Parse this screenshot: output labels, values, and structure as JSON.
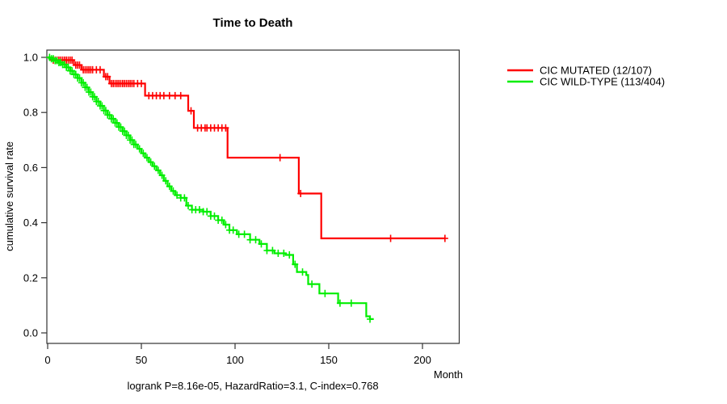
{
  "title": "Time to Death",
  "axes": {
    "ylabel": "cumulative survival rate",
    "xlabel": "Month",
    "xticks": [
      0,
      50,
      100,
      150,
      200
    ],
    "xtick_labels": [
      "0",
      "50",
      "100",
      "150",
      "200"
    ],
    "yticks": [
      0.0,
      0.2,
      0.4,
      0.6,
      0.8,
      1.0
    ],
    "ytick_labels": [
      "0.0",
      "0.2",
      "0.4",
      "0.6",
      "0.8",
      "1.0"
    ]
  },
  "legend": {
    "entries": [
      {
        "key": "cic-mutated",
        "label": "CIC MUTATED (12/107)",
        "color": "#FF0000"
      },
      {
        "key": "cic-wild-type",
        "label": "CIC WILD-TYPE (113/404)",
        "color": "#00EE00"
      }
    ]
  },
  "footer": {
    "stats_line": "logrank P=8.16e-05, HazardRatio=3.1, C-index=0.768"
  },
  "colors": {
    "mutated": "#FF0000",
    "wildtype": "#00EE00",
    "axis": "#333333",
    "text": "#000000",
    "background": "#FFFFFF"
  },
  "chart_data": {
    "type": "line",
    "subtype": "kaplan-meier-step",
    "title": "Time to Death",
    "xlabel": "Month",
    "ylabel": "cumulative survival rate",
    "xlim": [
      0,
      219
    ],
    "ylim": [
      0,
      1.0
    ],
    "xticks": [
      0,
      50,
      100,
      150,
      200
    ],
    "yticks": [
      0.0,
      0.2,
      0.4,
      0.6,
      0.8,
      1.0
    ],
    "grid": false,
    "legend_position": "right-outside",
    "series": [
      {
        "name": "CIC MUTATED (12/107)",
        "key": "cic-mutated",
        "color": "#FF0000",
        "events_total": "12/107",
        "end_month": 212,
        "steps": [
          [
            0,
            1.0
          ],
          [
            1,
            0.995
          ],
          [
            3,
            0.99
          ],
          [
            14,
            0.972
          ],
          [
            18,
            0.955
          ],
          [
            30,
            0.93
          ],
          [
            33,
            0.905
          ],
          [
            52,
            0.861
          ],
          [
            75,
            0.806
          ],
          [
            78,
            0.744
          ],
          [
            96,
            0.636
          ],
          [
            134,
            0.506
          ],
          [
            146,
            0.343
          ]
        ],
        "censor_months": [
          3,
          4,
          5,
          6,
          7,
          8,
          9,
          10,
          11,
          12,
          13,
          15,
          16,
          17,
          19,
          20,
          21,
          22,
          23,
          24,
          26,
          28,
          31,
          32,
          34,
          35,
          36,
          37,
          38,
          39,
          40,
          41,
          42,
          43,
          44,
          45,
          46,
          48,
          50,
          54,
          56,
          58,
          60,
          62,
          65,
          68,
          71,
          76.5,
          80,
          82,
          84,
          85,
          87,
          89,
          91,
          93,
          95,
          124,
          135,
          183,
          212
        ]
      },
      {
        "name": "CIC WILD-TYPE (113/404)",
        "key": "cic-wild-type",
        "color": "#00EE00",
        "events_total": "113/404",
        "end_month": 174,
        "steps": [
          [
            0,
            1.0
          ],
          [
            2,
            0.995
          ],
          [
            4,
            0.988
          ],
          [
            6,
            0.981
          ],
          [
            8,
            0.974
          ],
          [
            10,
            0.964
          ],
          [
            12,
            0.951
          ],
          [
            14,
            0.938
          ],
          [
            16,
            0.925
          ],
          [
            18,
            0.908
          ],
          [
            20,
            0.891
          ],
          [
            22,
            0.874
          ],
          [
            24,
            0.857
          ],
          [
            26,
            0.84
          ],
          [
            28,
            0.824
          ],
          [
            30,
            0.807
          ],
          [
            32,
            0.791
          ],
          [
            34,
            0.777
          ],
          [
            36,
            0.762
          ],
          [
            38,
            0.747
          ],
          [
            40,
            0.732
          ],
          [
            42,
            0.717
          ],
          [
            44,
            0.7
          ],
          [
            46,
            0.684
          ],
          [
            48,
            0.668
          ],
          [
            50,
            0.652
          ],
          [
            52,
            0.636
          ],
          [
            54,
            0.62
          ],
          [
            56,
            0.605
          ],
          [
            58,
            0.59
          ],
          [
            60,
            0.572
          ],
          [
            62,
            0.552
          ],
          [
            64,
            0.532
          ],
          [
            66,
            0.515
          ],
          [
            68,
            0.5
          ],
          [
            71,
            0.49
          ],
          [
            74,
            0.462
          ],
          [
            77,
            0.447
          ],
          [
            83,
            0.44
          ],
          [
            87,
            0.424
          ],
          [
            91,
            0.409
          ],
          [
            94,
            0.393
          ],
          [
            97,
            0.373
          ],
          [
            101,
            0.358
          ],
          [
            108,
            0.338
          ],
          [
            113,
            0.323
          ],
          [
            117,
            0.299
          ],
          [
            121,
            0.289
          ],
          [
            127,
            0.283
          ],
          [
            131,
            0.249
          ],
          [
            133,
            0.221
          ],
          [
            138,
            0.21
          ],
          [
            139,
            0.177
          ],
          [
            145,
            0.143
          ],
          [
            155,
            0.108
          ],
          [
            170,
            0.06
          ],
          [
            172,
            0.05
          ]
        ],
        "censor_months": [
          1,
          2,
          3,
          4,
          5,
          6,
          7,
          8,
          9,
          10,
          11,
          12,
          13,
          14,
          15,
          16,
          17,
          18,
          19,
          20,
          21,
          22,
          23,
          24,
          25,
          26,
          27,
          28,
          29,
          30,
          31,
          32,
          33,
          34,
          35,
          36,
          37,
          38,
          39,
          40,
          41,
          42,
          43,
          44,
          45,
          46,
          47,
          49,
          51,
          53,
          55,
          57,
          59,
          61,
          63,
          65,
          67,
          69,
          71,
          73,
          75,
          77,
          79,
          81,
          83,
          85,
          87,
          89,
          91,
          93,
          95,
          97,
          99,
          102,
          105,
          108,
          111,
          114,
          117,
          120,
          123,
          126,
          129,
          132,
          136,
          141,
          148,
          156,
          162,
          172
        ]
      }
    ]
  }
}
